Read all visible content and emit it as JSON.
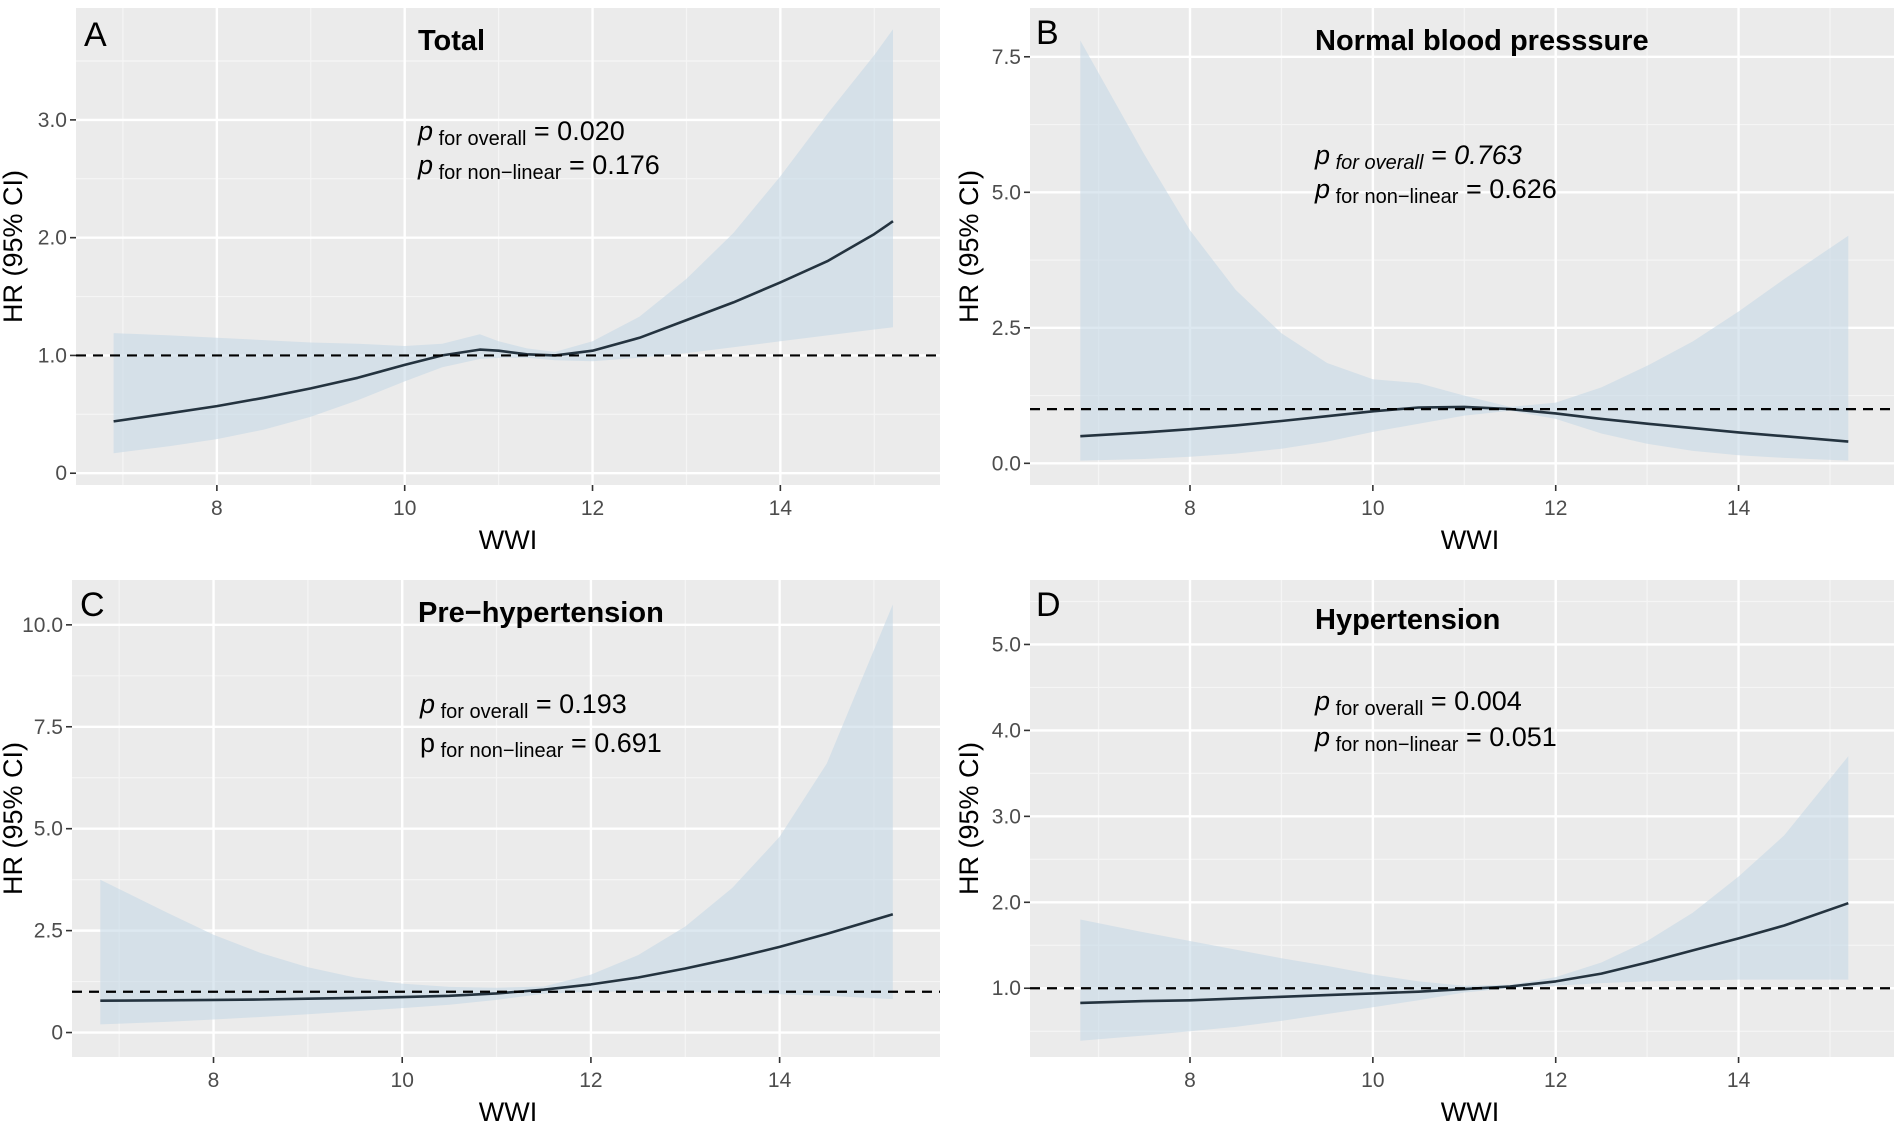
{
  "colors": {
    "panel_bg": "#EBEBEB",
    "grid_major": "#FFFFFF",
    "grid_minor": "#F5F5F5",
    "band": "#C6D9E6",
    "curve": "#24333F",
    "reference": "#000000",
    "tick": "#333333"
  },
  "chart_data": [
    {
      "id": "A",
      "type": "line",
      "letter": "A",
      "title": "Total",
      "xlabel": "WWI",
      "ylabel": "HR (95% CI)",
      "xlim": [
        6.5,
        15.7
      ],
      "ylim": [
        -0.1,
        3.95
      ],
      "xticks": [
        8,
        10,
        12,
        14
      ],
      "xtick_labels": [
        "8",
        "10",
        "12",
        "14"
      ],
      "yticks": [
        0,
        1,
        2,
        3
      ],
      "ytick_labels": [
        "0",
        "1.0",
        "2.0",
        "3.0"
      ],
      "reference_line": 1.0,
      "stats": [
        {
          "p": "p",
          "label": " for overall",
          "eq": " = 0.020"
        },
        {
          "p": "p",
          "label": " for non−linear",
          "eq": " = 0.176"
        }
      ],
      "series": [
        {
          "name": "HR",
          "x": [
            6.9,
            7.5,
            8.0,
            8.5,
            9.0,
            9.5,
            10.0,
            10.4,
            10.8,
            11.0,
            11.3,
            11.6,
            12.0,
            12.5,
            13.0,
            13.5,
            14.0,
            14.5,
            15.0,
            15.2
          ],
          "y": [
            0.44,
            0.51,
            0.57,
            0.64,
            0.72,
            0.81,
            0.92,
            1.0,
            1.05,
            1.04,
            1.01,
            1.0,
            1.04,
            1.15,
            1.3,
            1.45,
            1.62,
            1.8,
            2.03,
            2.14
          ],
          "lower": [
            0.17,
            0.23,
            0.29,
            0.37,
            0.48,
            0.62,
            0.78,
            0.9,
            0.97,
            0.98,
            0.98,
            0.96,
            0.95,
            0.98,
            1.02,
            1.07,
            1.12,
            1.17,
            1.22,
            1.24
          ],
          "upper": [
            1.19,
            1.17,
            1.15,
            1.13,
            1.11,
            1.1,
            1.08,
            1.1,
            1.18,
            1.12,
            1.06,
            1.03,
            1.12,
            1.33,
            1.65,
            2.04,
            2.52,
            3.05,
            3.55,
            3.77
          ]
        }
      ]
    },
    {
      "id": "B",
      "type": "line",
      "letter": "B",
      "title": "Normal blood presssure",
      "xlabel": "WWI",
      "ylabel": "HR (95% CI)",
      "xlim": [
        6.25,
        15.7
      ],
      "ylim": [
        -0.4,
        8.4
      ],
      "xticks": [
        8,
        10,
        12,
        14
      ],
      "xtick_labels": [
        "8",
        "10",
        "12",
        "14"
      ],
      "yticks": [
        0,
        2.5,
        5,
        7.5
      ],
      "ytick_labels": [
        "0.0",
        "2.5",
        "5.0",
        "7.5"
      ],
      "reference_line": 1.0,
      "stats": [
        {
          "p": "p",
          "label": " for overall",
          "eq": " = 0.763"
        },
        {
          "p": "p",
          "label": " for non−linear",
          "eq": " = 0.626"
        }
      ],
      "series": [
        {
          "name": "HR",
          "x": [
            6.8,
            7.5,
            8.0,
            8.5,
            9.0,
            9.5,
            10.0,
            10.5,
            11.0,
            11.5,
            12.0,
            12.5,
            13.0,
            13.5,
            14.0,
            14.5,
            15.2
          ],
          "y": [
            0.5,
            0.57,
            0.63,
            0.7,
            0.78,
            0.87,
            0.96,
            1.03,
            1.04,
            1.0,
            0.92,
            0.82,
            0.73,
            0.65,
            0.57,
            0.5,
            0.4
          ],
          "lower": [
            0.05,
            0.08,
            0.12,
            0.18,
            0.27,
            0.4,
            0.58,
            0.73,
            0.88,
            0.97,
            0.82,
            0.55,
            0.36,
            0.23,
            0.15,
            0.1,
            0.05
          ],
          "upper": [
            7.8,
            5.7,
            4.3,
            3.2,
            2.4,
            1.85,
            1.55,
            1.48,
            1.25,
            1.04,
            1.12,
            1.4,
            1.8,
            2.25,
            2.8,
            3.4,
            4.2
          ]
        }
      ]
    },
    {
      "id": "C",
      "type": "line",
      "letter": "C",
      "title": "Pre−hypertension",
      "xlabel": "WWI",
      "ylabel": "HR (95% CI)",
      "xlim": [
        6.5,
        15.7
      ],
      "ylim": [
        -0.6,
        11.1
      ],
      "xticks": [
        8,
        10,
        12,
        14
      ],
      "xtick_labels": [
        "8",
        "10",
        "12",
        "14"
      ],
      "yticks": [
        0,
        2.5,
        5,
        7.5,
        10
      ],
      "ytick_labels": [
        "0",
        "2.5",
        "5.0",
        "7.5",
        "10.0"
      ],
      "reference_line": 1.0,
      "stats": [
        {
          "p": "p",
          "label": " for overall",
          "eq": " = 0.193"
        },
        {
          "p": "p",
          "label": " for non−linear",
          "eq": " = 0.691"
        }
      ],
      "series": [
        {
          "name": "HR",
          "x": [
            6.8,
            7.5,
            8.0,
            8.5,
            9.0,
            9.5,
            10.0,
            10.5,
            11.0,
            11.5,
            12.0,
            12.5,
            13.0,
            13.5,
            14.0,
            14.5,
            15.2
          ],
          "y": [
            0.78,
            0.79,
            0.8,
            0.81,
            0.83,
            0.85,
            0.87,
            0.9,
            0.96,
            1.05,
            1.18,
            1.35,
            1.57,
            1.82,
            2.1,
            2.42,
            2.9
          ],
          "lower": [
            0.2,
            0.26,
            0.32,
            0.38,
            0.45,
            0.52,
            0.6,
            0.68,
            0.8,
            0.95,
            1.0,
            1.01,
            1.0,
            0.97,
            0.94,
            0.9,
            0.82
          ],
          "upper": [
            3.75,
            2.95,
            2.4,
            1.95,
            1.6,
            1.35,
            1.2,
            1.12,
            1.1,
            1.13,
            1.42,
            1.9,
            2.6,
            3.55,
            4.8,
            6.6,
            10.5
          ]
        }
      ]
    },
    {
      "id": "D",
      "type": "line",
      "letter": "D",
      "title": "Hypertension",
      "xlabel": "WWI",
      "ylabel": "HR (95% CI)",
      "xlim": [
        6.25,
        15.7
      ],
      "ylim": [
        0.2,
        5.75
      ],
      "xticks": [
        8,
        10,
        12,
        14
      ],
      "xtick_labels": [
        "8",
        "10",
        "12",
        "14"
      ],
      "yticks": [
        1,
        2,
        3,
        4,
        5
      ],
      "ytick_labels": [
        "1.0",
        "2.0",
        "3.0",
        "4.0",
        "5.0"
      ],
      "reference_line": 1.0,
      "stats": [
        {
          "p": "p",
          "label": " for overall",
          "eq": " = 0.004"
        },
        {
          "p": "p",
          "label": " for non−linear",
          "eq": " = 0.051"
        }
      ],
      "series": [
        {
          "name": "HR",
          "x": [
            6.8,
            7.5,
            8.0,
            8.5,
            9.0,
            9.5,
            10.0,
            10.5,
            11.0,
            11.5,
            12.0,
            12.5,
            13.0,
            13.5,
            14.0,
            14.5,
            15.2
          ],
          "y": [
            0.83,
            0.85,
            0.86,
            0.88,
            0.9,
            0.92,
            0.94,
            0.96,
            0.99,
            1.02,
            1.08,
            1.17,
            1.3,
            1.44,
            1.58,
            1.73,
            1.99
          ],
          "lower": [
            0.39,
            0.45,
            0.5,
            0.55,
            0.62,
            0.7,
            0.78,
            0.86,
            0.95,
            1.0,
            1.03,
            1.06,
            1.08,
            1.09,
            1.1,
            1.1,
            1.1
          ],
          "upper": [
            1.8,
            1.65,
            1.55,
            1.45,
            1.35,
            1.26,
            1.16,
            1.08,
            1.03,
            1.04,
            1.13,
            1.3,
            1.55,
            1.88,
            2.3,
            2.78,
            3.7
          ]
        }
      ]
    }
  ]
}
